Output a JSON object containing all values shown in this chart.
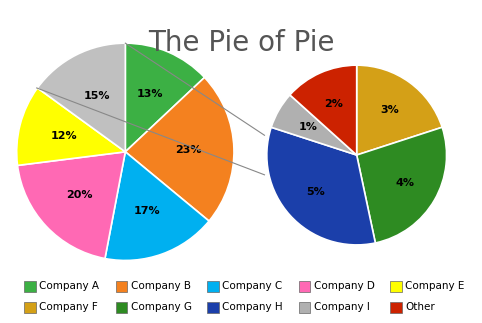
{
  "title": "The Pie of Pie",
  "title_fontsize": 20,
  "main_pie": {
    "labels": [
      "Company A",
      "Company B",
      "Company C",
      "Company D",
      "Company E",
      "Other"
    ],
    "values": [
      13,
      23,
      17,
      20,
      12,
      15
    ],
    "colors": [
      "#3cb044",
      "#f4811f",
      "#00b0f0",
      "#ff69b4",
      "#ffff00",
      "#c0c0c0"
    ],
    "pct_labels": [
      "13%",
      "23%",
      "17%",
      "20%",
      "12%",
      "15%"
    ]
  },
  "secondary_pie": {
    "labels": [
      "Company F",
      "Company G",
      "Company H",
      "Company I",
      "Other"
    ],
    "values": [
      3,
      4,
      5,
      1,
      2
    ],
    "colors": [
      "#d4a017",
      "#2e8b22",
      "#1b3faa",
      "#b0b0b0",
      "#cc2200"
    ],
    "pct_labels": [
      "3%",
      "4%",
      "5%",
      "1%",
      "2%"
    ]
  },
  "legend_entries": [
    {
      "label": "Company A",
      "color": "#3cb044"
    },
    {
      "label": "Company B",
      "color": "#f4811f"
    },
    {
      "label": "Company C",
      "color": "#00b0f0"
    },
    {
      "label": "Company D",
      "color": "#ff69b4"
    },
    {
      "label": "Company E",
      "color": "#ffff00"
    },
    {
      "label": "Company F",
      "color": "#d4a017"
    },
    {
      "label": "Company G",
      "color": "#2e8b22"
    },
    {
      "label": "Company H",
      "color": "#1b3faa"
    },
    {
      "label": "Company I",
      "color": "#b0b0b0"
    },
    {
      "label": "Other",
      "color": "#cc2200"
    }
  ]
}
